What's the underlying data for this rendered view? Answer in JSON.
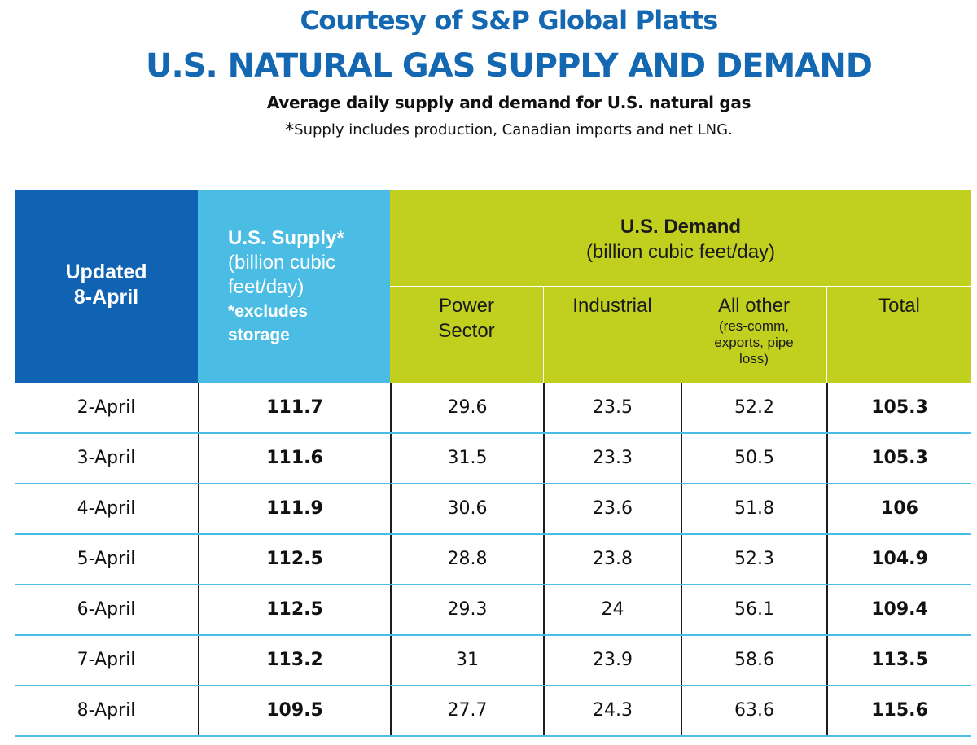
{
  "header": {
    "courtesy": "Courtesy of S&P Global Platts",
    "title": "U.S. NATURAL GAS SUPPLY AND DEMAND",
    "subtitle": "Average daily supply and demand for U.S. natural gas",
    "note_star": "*",
    "note": "Supply includes production, Canadian imports and net LNG."
  },
  "colors": {
    "title_blue": "#1467b1",
    "updated_header": "#0f63b2",
    "supply_header": "#4bbce3",
    "demand_header": "#c1cf1f",
    "row_separator": "#4bbce3"
  },
  "chart_data": {
    "type": "table",
    "columns": {
      "updated": {
        "line1": "Updated",
        "line2": "8-April"
      },
      "supply": {
        "label": "U.S. Supply*",
        "unit_line1": "(billion cubic",
        "unit_line2": "feet/day)",
        "note_line1": "*excludes",
        "note_line2": "storage"
      },
      "demand": {
        "label": "U.S. Demand",
        "unit": "(billion cubic feet/day)"
      },
      "power": {
        "line1": "Power",
        "line2": "Sector"
      },
      "industrial": {
        "label": "Industrial"
      },
      "other": {
        "label": "All other",
        "detail_line1": "(res-comm,",
        "detail_line2": "exports, pipe",
        "detail_line3": "loss)"
      },
      "total": {
        "label": "Total"
      }
    },
    "rows": [
      {
        "date": "2-April",
        "supply": "111.7",
        "power": "29.6",
        "industrial": "23.5",
        "other": "52.2",
        "total": "105.3"
      },
      {
        "date": "3-April",
        "supply": "111.6",
        "power": "31.5",
        "industrial": "23.3",
        "other": "50.5",
        "total": "105.3"
      },
      {
        "date": "4-April",
        "supply": "111.9",
        "power": "30.6",
        "industrial": "23.6",
        "other": "51.8",
        "total": "106"
      },
      {
        "date": "5-April",
        "supply": "112.5",
        "power": "28.8",
        "industrial": "23.8",
        "other": "52.3",
        "total": "104.9"
      },
      {
        "date": "6-April",
        "supply": "112.5",
        "power": "29.3",
        "industrial": "24",
        "other": "56.1",
        "total": "109.4"
      },
      {
        "date": "7-April",
        "supply": "113.2",
        "power": "31",
        "industrial": "23.9",
        "other": "58.6",
        "total": "113.5"
      },
      {
        "date": "8-April",
        "supply": "109.5",
        "power": "27.7",
        "industrial": "24.3",
        "other": "63.6",
        "total": "115.6"
      }
    ]
  }
}
